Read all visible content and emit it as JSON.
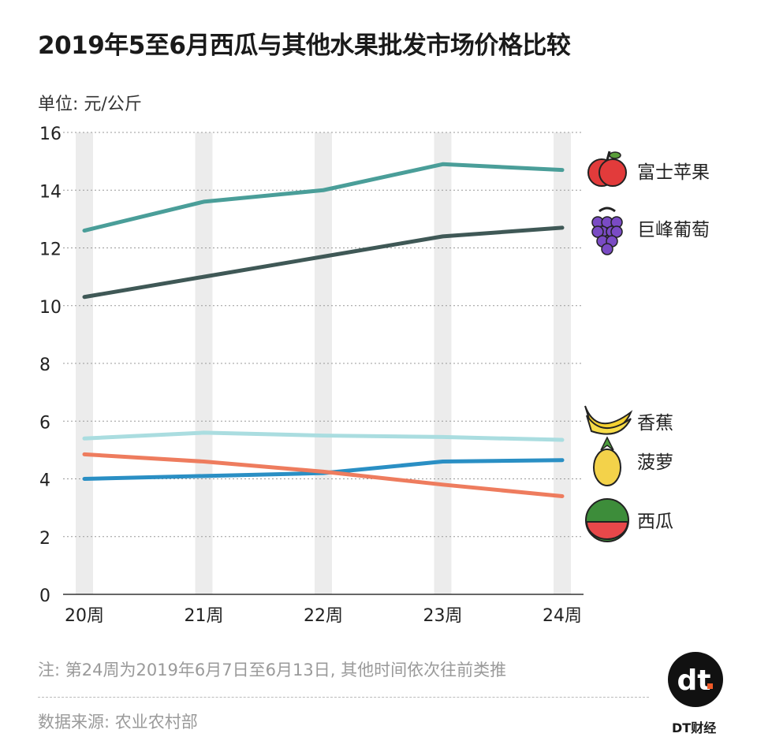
{
  "chart_data": {
    "type": "line",
    "title": "2019年5至6月西瓜与其他水果批发市场价格比较",
    "ylabel": "单位: 元/公斤",
    "xlabel": "",
    "categories": [
      "20周",
      "21周",
      "22周",
      "23周",
      "24周"
    ],
    "ylim": [
      0,
      16
    ],
    "yticks": [
      0,
      2,
      4,
      6,
      8,
      10,
      12,
      14,
      16
    ],
    "grid": true,
    "legend": "right, labels at line ends",
    "series": [
      {
        "name": "富士苹果",
        "color": "#4a9e99",
        "icon": "apple-icon",
        "values": [
          12.6,
          13.6,
          14.0,
          14.9,
          14.7
        ]
      },
      {
        "name": "巨峰葡萄",
        "color": "#3f5856",
        "icon": "grapes-icon",
        "values": [
          10.3,
          11.0,
          11.7,
          12.4,
          12.7
        ]
      },
      {
        "name": "香蕉",
        "color": "#aadde0",
        "icon": "banana-icon",
        "values": [
          5.4,
          5.6,
          5.5,
          5.45,
          5.35
        ]
      },
      {
        "name": "菠萝",
        "color": "#2a8fc4",
        "icon": "pineapple-icon",
        "values": [
          4.0,
          4.1,
          4.2,
          4.6,
          4.65
        ]
      },
      {
        "name": "西瓜",
        "color": "#ee7c5e",
        "icon": "watermelon-icon",
        "values": [
          4.85,
          4.6,
          4.25,
          3.8,
          3.4
        ]
      }
    ]
  },
  "note": "注: 第24周为2019年6月7日至6月13日, 其他时间依次往前类推",
  "source": "数据来源: 农业农村部",
  "logo": {
    "mark": "dt.",
    "text": "DT财经"
  }
}
